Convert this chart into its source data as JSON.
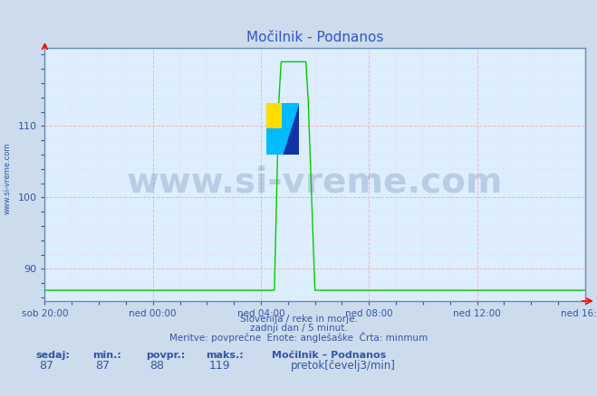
{
  "title": "Močilnik - Podnanos",
  "bg_color": "#ccdcec",
  "plot_bg_color": "#ddeeff",
  "line_color": "#00cc00",
  "grid_color_major": "#ffaaaa",
  "grid_color_minor": "#ffcccc",
  "axis_color": "#6688bb",
  "title_color": "#3355cc",
  "text_color": "#3355aa",
  "ylabel_text": "www.si-vreme.com",
  "xlabels": [
    "sob 20:00",
    "ned 00:00",
    "ned 04:00",
    "ned 08:00",
    "ned 12:00",
    "ned 16:00"
  ],
  "xtick_hours": [
    0,
    4,
    8,
    12,
    16,
    20
  ],
  "total_hours": 20,
  "ylim_min": 85.5,
  "ylim_max": 121,
  "yticks": [
    90,
    100,
    110
  ],
  "base_value": 87,
  "peak_value": 119,
  "spike_rise_hour": 8.5,
  "spike_peak_start_hour": 8.7,
  "spike_peak_end_hour": 9.7,
  "spike_fall_hour": 10.0,
  "footer_line1": "Slovenija / reke in morje.",
  "footer_line2": "zadnji dan / 5 minut.",
  "footer_line3": "Meritve: povprečne  Enote: anglešaške  Črta: minmum",
  "legend_title": "Močilnik – Podnanos",
  "legend_label": "pretok[čevelj3/min]",
  "stat_sedaj": 87,
  "stat_min": 87,
  "stat_povpr": 88,
  "stat_maks": 119,
  "watermark_text": "www.si-vreme.com",
  "watermark_color": "#1a3a7a",
  "watermark_alpha": 0.18,
  "watermark_fontsize": 28
}
